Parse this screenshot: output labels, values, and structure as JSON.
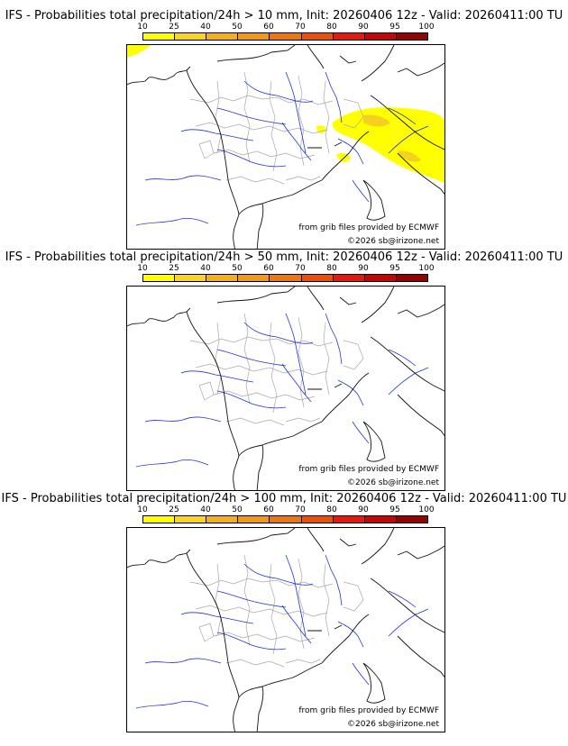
{
  "colorbar": {
    "labels": [
      "10",
      "25",
      "40",
      "50",
      "60",
      "70",
      "80",
      "90",
      "95",
      "100"
    ],
    "colors": [
      "#ffff00",
      "#f7d426",
      "#f0b020",
      "#eb9a1a",
      "#e87810",
      "#e85010",
      "#e01c10",
      "#c00808",
      "#900404",
      "#600000"
    ]
  },
  "panels": [
    {
      "title": "IFS - Probabilities total precipitation/24h > 10 mm, Init: 20260406 12z - Valid: 20260411:00 TU",
      "source_label": "from grib files provided by ECMWF",
      "copyright_label": "©2026 sb@irizone.net",
      "has_precip": true
    },
    {
      "title": "IFS - Probabilities total precipitation/24h > 50 mm, Init: 20260406 12z - Valid: 20260411:00 TU",
      "source_label": "from grib files provided by ECMWF",
      "copyright_label": "©2026 sb@irizone.net",
      "has_precip": false
    },
    {
      "title": "IFS - Probabilities total precipitation/24h > 100 mm, Init: 20260406 12z - Valid: 20260411:00 TU",
      "source_label": "from grib files provided by ECMWF",
      "copyright_label": "©2026 sb@irizone.net",
      "has_precip": false
    }
  ],
  "map_colors": {
    "coast": "#111111",
    "rivers": "#2233dd",
    "regions": "#a8a8a8",
    "precip_light": "#ffff00",
    "precip_mid": "#f5d020"
  }
}
